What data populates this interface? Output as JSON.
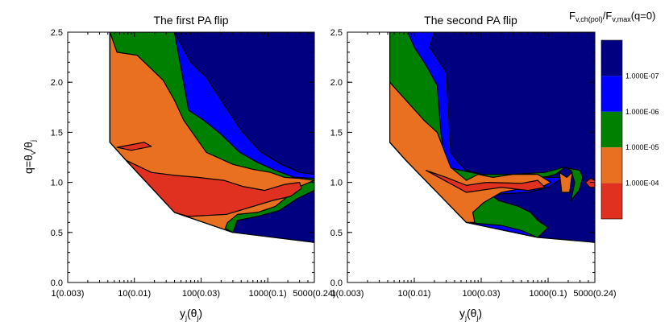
{
  "chart_data": [
    {
      "type": "contour",
      "title": "The first PA flip",
      "xlabel": {
        "main": "y",
        "sub": "j",
        "rest": "(θ",
        "sub2": "j",
        "close": ")"
      },
      "ylabel": {
        "main": "q=θ",
        "sub": "v",
        "rest": "/θ",
        "sub2": "j"
      },
      "xscale": "log",
      "xticks": [
        {
          "value": 1,
          "label": "1(0.003)"
        },
        {
          "value": 10,
          "label": "10(0.01)"
        },
        {
          "value": 100,
          "label": "100(0.03)"
        },
        {
          "value": 1000,
          "label": "1000(0.1)"
        },
        {
          "value": 5000,
          "label": "5000(0.24)"
        }
      ],
      "xlim": [
        1,
        5000
      ],
      "yticks": [
        "0.0",
        "0.5",
        "1.0",
        "1.5",
        "2.0",
        "2.5"
      ],
      "ylim": [
        0,
        2.5
      ],
      "regions": [
        {
          "level": "1.000E-07",
          "color": "#000080",
          "points": [
            [
              4.3,
              2.5
            ],
            [
              4.3,
              1.4
            ],
            [
              7.5,
              1.22
            ],
            [
              40,
              0.7
            ],
            [
              300,
              0.5
            ],
            [
              5000,
              0.4
            ],
            [
              5000,
              2.5
            ]
          ]
        },
        {
          "level": "1.000E-06",
          "color": "#0000ff",
          "points": [
            [
              4.3,
              2.5
            ],
            [
              4.3,
              1.4
            ],
            [
              7.5,
              1.22
            ],
            [
              40,
              0.7
            ],
            [
              300,
              0.5
            ],
            [
              350,
              0.62
            ],
            [
              700,
              0.66
            ],
            [
              1500,
              0.72
            ],
            [
              2800,
              0.84
            ],
            [
              5000,
              0.92
            ],
            [
              5000,
              1.08
            ],
            [
              3000,
              1.1
            ],
            [
              1600,
              1.18
            ],
            [
              800,
              1.3
            ],
            [
              420,
              1.5
            ],
            [
              220,
              1.78
            ],
            [
              120,
              2.05
            ],
            [
              70,
              2.2
            ],
            [
              40,
              2.5
            ]
          ]
        },
        {
          "level": "1.000E-05",
          "color": "#008000",
          "points": [
            [
              4.3,
              2.5
            ],
            [
              4.3,
              1.4
            ],
            [
              7.5,
              1.22
            ],
            [
              40,
              0.7
            ],
            [
              300,
              0.5
            ],
            [
              350,
              0.62
            ],
            [
              700,
              0.66
            ],
            [
              1500,
              0.72
            ],
            [
              2800,
              0.84
            ],
            [
              5000,
              0.92
            ],
            [
              5000,
              1.04
            ],
            [
              2500,
              1.05
            ],
            [
              1300,
              1.12
            ],
            [
              700,
              1.2
            ],
            [
              380,
              1.3
            ],
            [
              200,
              1.48
            ],
            [
              110,
              1.62
            ],
            [
              65,
              1.72
            ],
            [
              40,
              2.5
            ]
          ]
        },
        {
          "level": "1.000E-04",
          "color": "#e87020",
          "points": [
            [
              4.3,
              2.5
            ],
            [
              4.3,
              1.4
            ],
            [
              7.5,
              1.22
            ],
            [
              40,
              0.7
            ],
            [
              300,
              0.5
            ],
            [
              230,
              0.54
            ],
            [
              250,
              0.6
            ],
            [
              350,
              0.68
            ],
            [
              700,
              0.7
            ],
            [
              1300,
              0.76
            ],
            [
              2000,
              0.86
            ],
            [
              2800,
              0.95
            ],
            [
              5000,
              1.02
            ],
            [
              3000,
              1.04
            ],
            [
              1800,
              1.05
            ],
            [
              1100,
              1.1
            ],
            [
              600,
              1.13
            ],
            [
              300,
              1.18
            ],
            [
              120,
              1.3
            ],
            [
              55,
              1.62
            ],
            [
              40,
              1.82
            ],
            [
              27,
              2.02
            ],
            [
              11,
              2.27
            ],
            [
              5.5,
              2.3
            ]
          ]
        },
        {
          "level": "1.000E-03",
          "color": "#e03020",
          "points": [
            [
              7.5,
              1.22
            ],
            [
              40,
              0.7
            ],
            [
              65,
              0.66
            ],
            [
              240,
              0.68
            ],
            [
              600,
              0.76
            ],
            [
              1200,
              0.82
            ],
            [
              2200,
              0.86
            ],
            [
              3200,
              0.94
            ],
            [
              3000,
              1.0
            ],
            [
              1800,
              0.98
            ],
            [
              900,
              0.92
            ],
            [
              420,
              0.96
            ],
            [
              220,
              1.02
            ],
            [
              90,
              1.05
            ],
            [
              40,
              1.07
            ],
            [
              18,
              1.1
            ]
          ]
        },
        {
          "level": "1.000E-03",
          "color": "#e03020",
          "points": [
            [
              5.5,
              1.35
            ],
            [
              14,
              1.4
            ],
            [
              18,
              1.36
            ],
            [
              9,
              1.32
            ]
          ]
        }
      ]
    },
    {
      "type": "contour",
      "title": "The second PA flip",
      "xlabel": {
        "main": "y",
        "sub": "j",
        "rest": "(θ",
        "sub2": "j",
        "close": ")"
      },
      "xscale": "log",
      "xticks": [
        {
          "value": 1,
          "label": "1(0.003)"
        },
        {
          "value": 10,
          "label": "10(0.01)"
        },
        {
          "value": 100,
          "label": "100(0.03)"
        },
        {
          "value": 1000,
          "label": "1000(0.1)"
        },
        {
          "value": 5000,
          "label": "5000(0.24)"
        }
      ],
      "xlim": [
        1,
        5000
      ],
      "yticks": [
        "0.0",
        "0.5",
        "1.0",
        "1.5",
        "2.0",
        "2.5"
      ],
      "ylim": [
        0,
        2.5
      ],
      "regions": [
        {
          "level": "1.000E-07",
          "color": "#000080",
          "points": [
            [
              4.3,
              2.5
            ],
            [
              4.3,
              1.4
            ],
            [
              7.5,
              1.22
            ],
            [
              60,
              0.6
            ],
            [
              700,
              0.45
            ],
            [
              5000,
              0.4
            ],
            [
              5000,
              2.5
            ]
          ]
        },
        {
          "level": "1.000E-06",
          "color": "#0000ff",
          "points": [
            [
              4.3,
              2.5
            ],
            [
              4.3,
              1.4
            ],
            [
              7.5,
              1.22
            ],
            [
              60,
              0.6
            ],
            [
              700,
              0.45
            ],
            [
              800,
              0.6
            ],
            [
              600,
              0.67
            ],
            [
              300,
              0.75
            ],
            [
              150,
              0.75
            ],
            [
              100,
              0.82
            ],
            [
              160,
              0.88
            ],
            [
              500,
              0.9
            ],
            [
              1000,
              0.95
            ],
            [
              1700,
              1.05
            ],
            [
              1200,
              1.05
            ],
            [
              400,
              1.05
            ],
            [
              150,
              1.05
            ],
            [
              60,
              1.12
            ],
            [
              45,
              1.2
            ],
            [
              35,
              1.3
            ],
            [
              30,
              2.1
            ],
            [
              17,
              2.35
            ],
            [
              20,
              2.5
            ]
          ]
        },
        {
          "level": "1.000E-05",
          "color": "#008000",
          "points": [
            [
              4.3,
              2.5
            ],
            [
              4.3,
              1.4
            ],
            [
              7.5,
              1.22
            ],
            [
              60,
              0.6
            ],
            [
              200,
              0.57
            ],
            [
              400,
              0.52
            ],
            [
              700,
              0.45
            ],
            [
              1000,
              0.55
            ],
            [
              700,
              0.62
            ],
            [
              550,
              0.7
            ],
            [
              360,
              0.76
            ],
            [
              180,
              0.82
            ],
            [
              100,
              0.95
            ],
            [
              400,
              1.02
            ],
            [
              1000,
              1.06
            ],
            [
              1300,
              1.08
            ],
            [
              1800,
              1.15
            ],
            [
              2200,
              1.12
            ],
            [
              2500,
              1.0
            ],
            [
              2200,
              0.82
            ],
            [
              2900,
              0.92
            ],
            [
              3300,
              1.05
            ],
            [
              3000,
              1.12
            ],
            [
              1700,
              1.15
            ],
            [
              900,
              1.1
            ],
            [
              300,
              1.08
            ],
            [
              100,
              1.08
            ],
            [
              30,
              1.15
            ],
            [
              25,
              1.5
            ],
            [
              22,
              1.97
            ],
            [
              15,
              2.17
            ],
            [
              10,
              2.35
            ],
            [
              8,
              2.5
            ]
          ]
        },
        {
          "level": "1.000E-04",
          "color": "#e87020",
          "points": [
            [
              4.3,
              2.0
            ],
            [
              4.3,
              1.4
            ],
            [
              7.5,
              1.22
            ],
            [
              60,
              0.6
            ],
            [
              80,
              0.6
            ],
            [
              75,
              0.7
            ],
            [
              110,
              0.8
            ],
            [
              200,
              0.9
            ],
            [
              500,
              0.95
            ],
            [
              900,
              0.97
            ],
            [
              1100,
              1.0
            ],
            [
              700,
              1.08
            ],
            [
              300,
              1.08
            ],
            [
              150,
              1.05
            ],
            [
              90,
              1.08
            ],
            [
              60,
              1.02
            ],
            [
              35,
              1.15
            ],
            [
              22,
              1.5
            ],
            [
              14,
              1.62
            ]
          ]
        },
        {
          "level": "1.000E-03",
          "color": "#e03020",
          "points": [
            [
              15,
              1.12
            ],
            [
              60,
              0.9
            ],
            [
              200,
              0.95
            ],
            [
              500,
              0.92
            ],
            [
              900,
              0.95
            ],
            [
              700,
              1.02
            ],
            [
              400,
              0.99
            ],
            [
              120,
              1.0
            ],
            [
              60,
              0.97
            ],
            [
              30,
              1.05
            ]
          ]
        },
        {
          "level": "1.000E-04",
          "color": "#e87020",
          "points": [
            [
              1480,
              1.1
            ],
            [
              1600,
              0.9
            ],
            [
              2100,
              0.9
            ],
            [
              2300,
              1.1
            ],
            [
              1900,
              1.05
            ]
          ]
        },
        {
          "level": "1.000E-03",
          "color": "#e03020",
          "points": [
            [
              3600,
              1.0
            ],
            [
              4200,
              0.95
            ],
            [
              5000,
              0.95
            ],
            [
              5000,
              1.02
            ],
            [
              4300,
              1.04
            ]
          ]
        }
      ]
    }
  ],
  "colorbar": {
    "title": {
      "main": "F",
      "sub1": "v,ch(pol)",
      "mid": "/F",
      "sub2": "v,max",
      "tail": "(q=0)"
    },
    "bands": [
      {
        "color": "#000080"
      },
      {
        "color": "#0000ff"
      },
      {
        "color": "#008000"
      },
      {
        "color": "#e87020"
      },
      {
        "color": "#e03020"
      }
    ],
    "labels": [
      "1.000E-07",
      "1.000E-06",
      "1.000E-05",
      "1.000E-04"
    ]
  }
}
